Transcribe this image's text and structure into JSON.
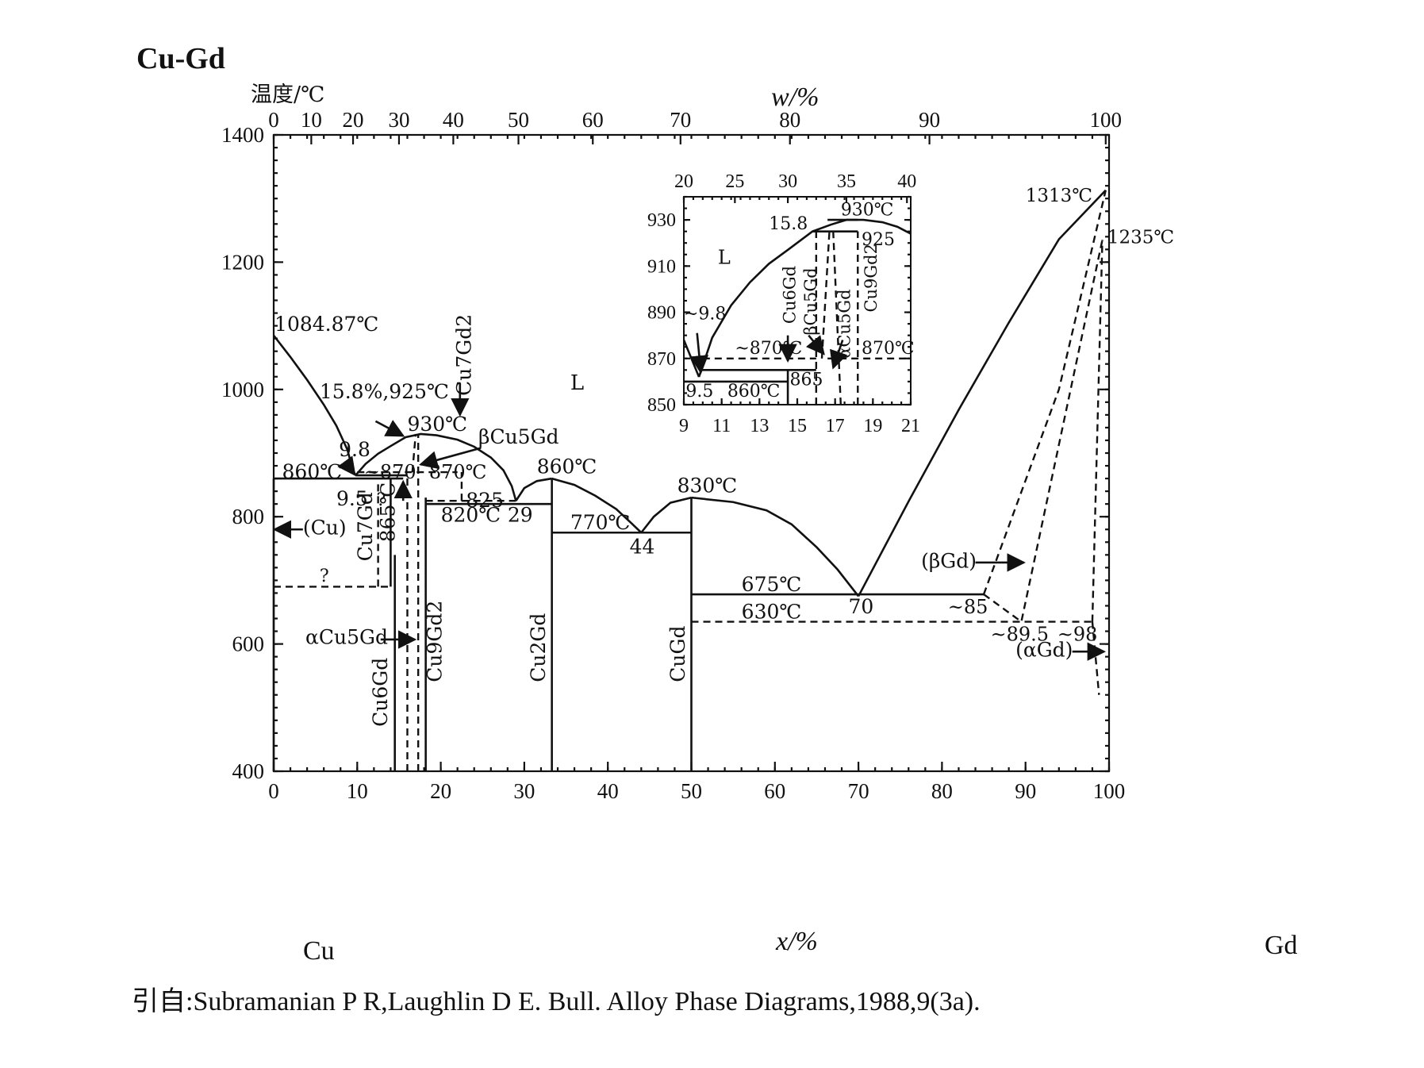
{
  "title": "Cu-Gd",
  "ylabel": "温度/℃",
  "top_axis_label": "w/%",
  "bottom_axis_label": "x/%",
  "element_left": "Cu",
  "element_right": "Gd",
  "citation": "引自:Subramanian P R,Laughlin D E. Bull. Alloy Phase Diagrams,1988,9(3a).",
  "main_plot": {
    "x_range": [
      0,
      100
    ],
    "y_range": [
      400,
      1400
    ],
    "x_ticks": [
      "0",
      "10",
      "20",
      "30",
      "40",
      "50",
      "60",
      "70",
      "80",
      "90",
      "100"
    ],
    "y_ticks": [
      "400",
      "600",
      "800",
      "1000",
      "1200",
      "1400"
    ],
    "w_ticks": [
      {
        "w": 0,
        "x": 0.0
      },
      {
        "w": 10,
        "x": 4.5
      },
      {
        "w": 20,
        "x": 9.5
      },
      {
        "w": 30,
        "x": 15.0
      },
      {
        "w": 40,
        "x": 21.5
      },
      {
        "w": 50,
        "x": 29.3
      },
      {
        "w": 60,
        "x": 38.2
      },
      {
        "w": 70,
        "x": 48.7
      },
      {
        "w": 80,
        "x": 61.8
      },
      {
        "w": 90,
        "x": 78.5
      },
      {
        "w": 100,
        "x": 99.6
      }
    ]
  },
  "inset_plot": {
    "x_range": [
      9,
      21
    ],
    "y_range": [
      850,
      940
    ],
    "x_ticks": [
      "9",
      "11",
      "13",
      "15",
      "17",
      "19",
      "21"
    ],
    "y_ticks": [
      "850",
      "870",
      "890",
      "910",
      "930"
    ],
    "w_ticks": [
      {
        "w": 20,
        "x": 9.0
      },
      {
        "w": 25,
        "x": 11.7
      },
      {
        "w": 30,
        "x": 14.5
      },
      {
        "w": 35,
        "x": 17.6
      },
      {
        "w": 40,
        "x": 20.8
      }
    ],
    "labels": {
      "liquid": "L",
      "pt_930": "930℃",
      "pt_15_8": "15.8",
      "pt_925": "925",
      "pt_9_8": "~9.8",
      "pt_870_left": "~870℃",
      "pt_870_right": "870℃",
      "pt_865": "865",
      "pt_9_5": "9.5",
      "pt_860": "860℃",
      "cu6gd": "Cu6Gd",
      "bcu5gd": "βCu5Gd",
      "acu5gd": "αCu5Gd",
      "cu9gd2": "Cu9Gd2"
    }
  },
  "labels": {
    "liquid": "L",
    "melt_cu": "1084.87℃",
    "melt_gd": "1313℃",
    "trans_gd": "1235℃",
    "pt_15_8": "15.8%,925℃",
    "pt_930": "930℃",
    "pt_9_8": "9.8",
    "pt_870a": "~870",
    "pt_870b": "870℃",
    "pt_860_left": "860℃",
    "pt_9_5": "9.5",
    "pt_q1": "?",
    "pt_q2": "?",
    "pt_825": "825",
    "pt_820": "820℃",
    "pt_29": "29",
    "pt_860_mid": "860℃",
    "pt_770": "770℃",
    "pt_44": "44",
    "pt_830": "830℃",
    "pt_675": "675℃",
    "pt_70": "70",
    "pt_85": "~85",
    "pt_630": "630℃",
    "pt_89_5": "~89.5",
    "pt_98": "~98",
    "pt_865": "865℃",
    "cu_phase": "(Cu)",
    "bgd_phase": "(βGd)",
    "agd_phase": "(αGd)",
    "acu5gd": "αCu5Gd",
    "bcu5gd": "βCu5Gd",
    "cu7gd2": "Cu7Gd2",
    "cu7gd": "Cu7Gd",
    "cu6gd": "Cu6Gd",
    "cu9gd2": "Cu9Gd2",
    "cu2gd": "Cu2Gd",
    "cugd": "CuGd"
  }
}
